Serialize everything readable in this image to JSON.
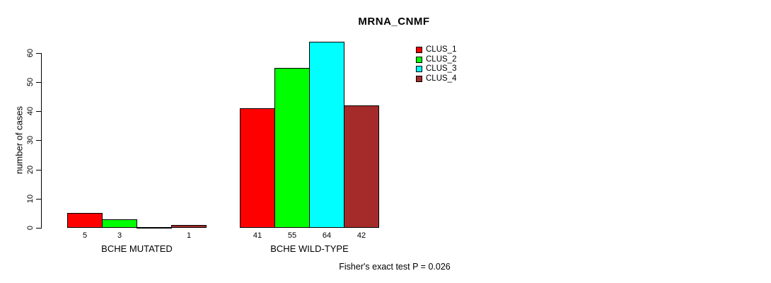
{
  "title": "MRNA_CNMF",
  "footer": "Fisher's exact test P = 0.026",
  "y_axis": {
    "label": "number of cases"
  },
  "legend": {
    "items": [
      {
        "label": "CLUS_1",
        "color": "#FF0000"
      },
      {
        "label": "CLUS_2",
        "color": "#00FF00"
      },
      {
        "label": "CLUS_3",
        "color": "#00FFFF"
      },
      {
        "label": "CLUS_4",
        "color": "#A52A2A"
      }
    ]
  },
  "chart_data": {
    "type": "bar",
    "title": "MRNA_CNMF",
    "xlabel": "",
    "ylabel": "number of cases",
    "ylim": [
      0,
      64
    ],
    "y_ticks": [
      0,
      10,
      20,
      30,
      40,
      50,
      60
    ],
    "grid": false,
    "legend_position": "top-right",
    "categories": [
      "BCHE MUTATED",
      "BCHE WILD-TYPE"
    ],
    "series": [
      {
        "name": "CLUS_1",
        "color": "#FF0000",
        "values": [
          5,
          41
        ]
      },
      {
        "name": "CLUS_2",
        "color": "#00FF00",
        "values": [
          3,
          55
        ]
      },
      {
        "name": "CLUS_3",
        "color": "#00FFFF",
        "values": [
          0,
          64
        ]
      },
      {
        "name": "CLUS_4",
        "color": "#A52A2A",
        "values": [
          1,
          42
        ]
      }
    ],
    "bar_value_labels": [
      [
        "5",
        "3",
        "",
        "1"
      ],
      [
        "41",
        "55",
        "64",
        "42"
      ]
    ],
    "annotation": "Fisher's exact test P = 0.026"
  }
}
